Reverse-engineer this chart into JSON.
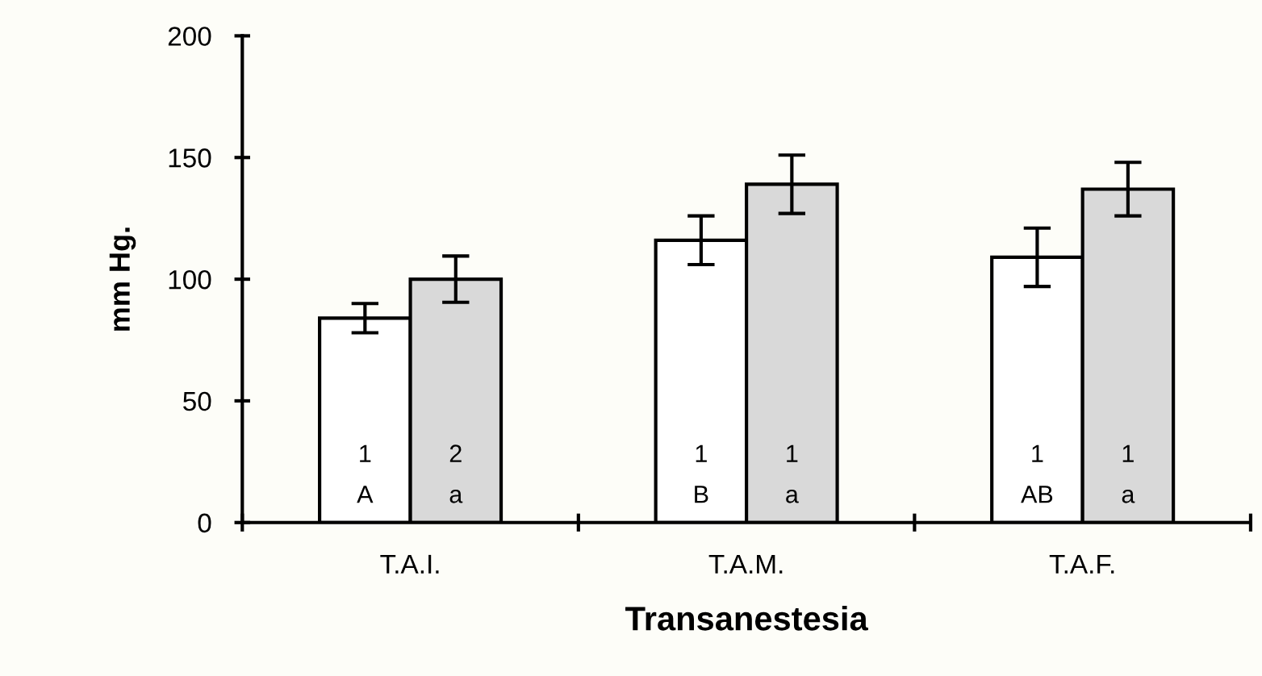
{
  "chart_data": {
    "type": "bar",
    "xlabel": "Transanestesia",
    "ylabel": "mm Hg.",
    "categories": [
      "T.A.I.",
      "T.A.M.",
      "T.A.F."
    ],
    "series": [
      {
        "color": "#ffffff",
        "values": [
          84,
          116,
          109
        ],
        "errors": [
          6,
          10,
          12
        ]
      },
      {
        "color": "#d9d9d9",
        "values": [
          100,
          139,
          137
        ],
        "errors": [
          9.5,
          12,
          11
        ]
      }
    ],
    "annotations": [
      "1\nA",
      "1\nB",
      "1\nAB",
      "2\na",
      "1\na",
      "1\na"
    ],
    "ylim": [
      0,
      200
    ],
    "yticks": [
      0,
      50,
      100,
      150,
      200
    ],
    "grid": false,
    "legend": false
  }
}
